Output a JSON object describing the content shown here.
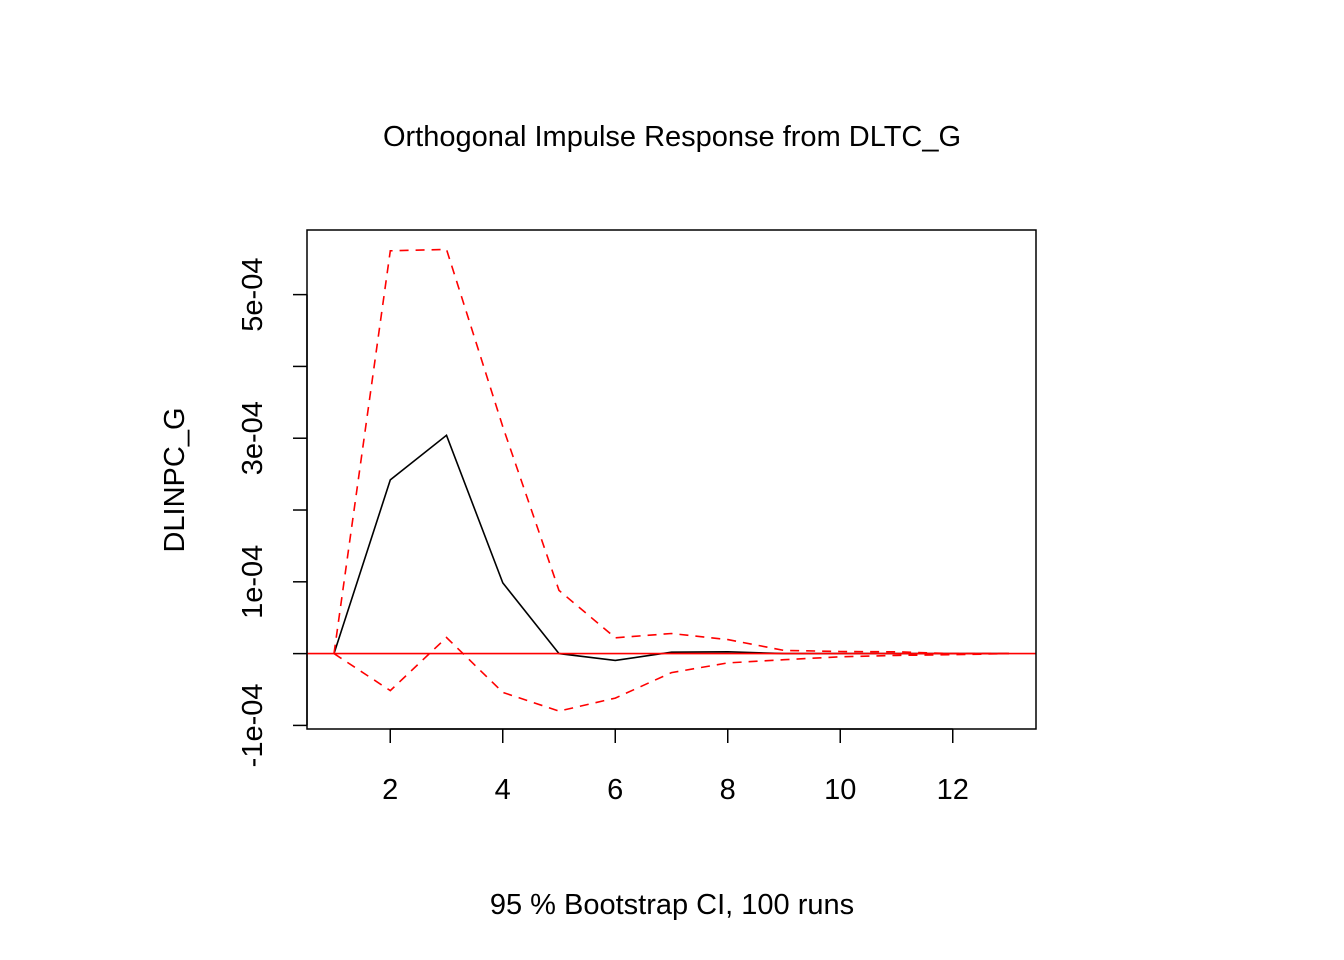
{
  "chart_data": {
    "type": "line",
    "title": "Orthogonal Impulse Response from DLTC_G",
    "xlabel": "95 % Bootstrap CI,  100 runs",
    "ylabel": "DLINPC_G",
    "xlim": [
      0.52,
      13.48
    ],
    "ylim": [
      -0.000105,
      0.00059
    ],
    "x_ticks": [
      2,
      4,
      6,
      8,
      10,
      12
    ],
    "x_tick_labels": [
      "2",
      "4",
      "6",
      "8",
      "10",
      "12"
    ],
    "y_ticks": [
      -0.0001,
      0,
      0.0001,
      0.0002,
      0.0003,
      0.0004,
      0.0005
    ],
    "y_tick_labels": [
      "-1e-04",
      "",
      "1e-04",
      "",
      "3e-04",
      "",
      "5e-04"
    ],
    "grid": false,
    "x": [
      1,
      2,
      3,
      4,
      5,
      6,
      7,
      8,
      9,
      10,
      11,
      12,
      13
    ],
    "series": [
      {
        "role": "response",
        "color": "#000000",
        "style": "solid",
        "values": [
          0,
          0.000242,
          0.000304,
          9.85e-05,
          0,
          -9.5e-06,
          2e-06,
          2.5e-06,
          0,
          0,
          0,
          0,
          0
        ]
      },
      {
        "role": "upper-ci",
        "color": "#ff0000",
        "style": "dashed",
        "values": [
          0,
          0.000561,
          0.000563,
          0.000316,
          8.8e-05,
          2.2e-05,
          2.8e-05,
          1.95e-05,
          4.5e-06,
          3e-06,
          2.5e-06,
          0,
          0
        ]
      },
      {
        "role": "lower-ci",
        "color": "#ff0000",
        "style": "dashed",
        "values": [
          0,
          -5.15e-05,
          2.25e-05,
          -5.4e-05,
          -8e-05,
          -6.2e-05,
          -2.65e-05,
          -1.3e-05,
          -8.5e-06,
          -4.5e-06,
          -2.5e-06,
          -1.5e-06,
          0
        ]
      }
    ],
    "reference_line": {
      "y": 0,
      "color": "#ff0000"
    }
  }
}
